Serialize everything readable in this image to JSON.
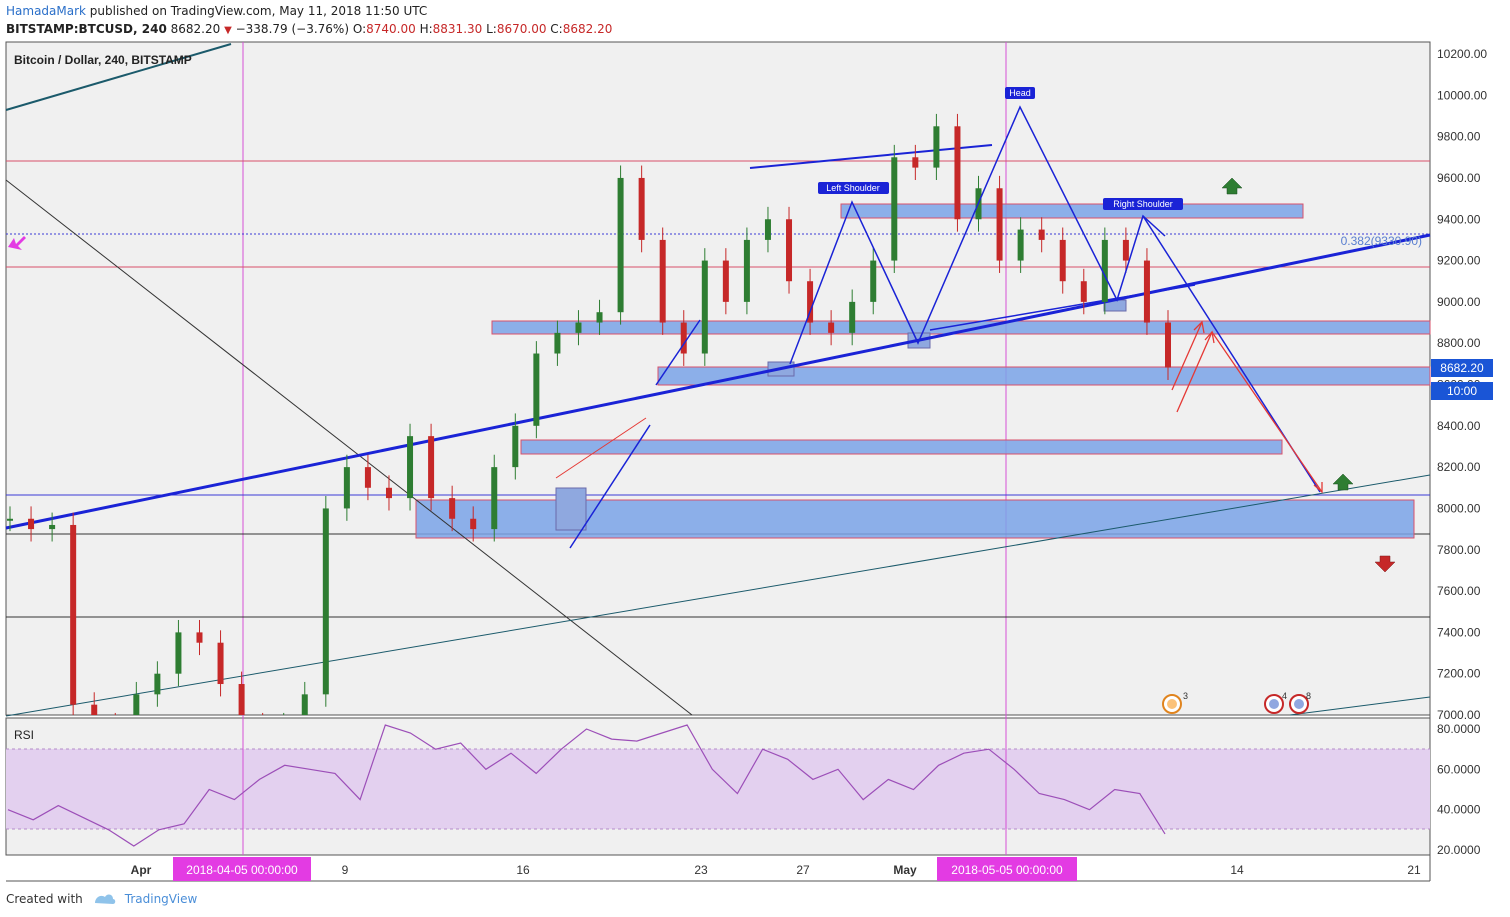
{
  "header": {
    "author": "HamadaMark",
    "published": " published on TradingView.com, May 11, 2018 11:50 UTC",
    "symbol": "BITSTAMP:BTCUSD, 240",
    "price": "8682.20",
    "change": "−338.79 (−3.76%)",
    "o_label": "O:",
    "o": "8740.00",
    "h_label": "H:",
    "h": "8831.30",
    "l_label": "L:",
    "l": "8670.00",
    "c_label": "C:",
    "c": "8682.20"
  },
  "chart": {
    "pane_title": "Bitcoin / Dollar, 240, BITSTAMP",
    "price_labels": [
      "10200.00",
      "10000.00",
      "9800.00",
      "9600.00",
      "9400.00",
      "9200.00",
      "9000.00",
      "8800.00",
      "8600.00",
      "8400.00",
      "8200.00",
      "8000.00",
      "7800.00",
      "7600.00",
      "7400.00",
      "7200.00",
      "7000.00"
    ],
    "last_price": "8682.20",
    "countdown": "10:00",
    "fib_label": "0.382(9330.90)",
    "annotations": {
      "head": "Head",
      "left_shoulder": "Left Shoulder",
      "right_shoulder": "Right Shoulder"
    },
    "events": [
      {
        "count": "3"
      },
      {
        "count": "4"
      },
      {
        "count": "8"
      }
    ],
    "colors": {
      "trend": "#1a23d6",
      "zone": "#7aa3e8",
      "zone_border": "#d9506a",
      "rsi": "#9c4fb8",
      "up": "#2e7d32",
      "down": "#c62828"
    }
  },
  "rsi": {
    "title": "RSI",
    "labels": [
      "80.0000",
      "60.0000",
      "40.0000",
      "20.0000"
    ]
  },
  "time_axis": {
    "labels": [
      "Apr",
      "9",
      "16",
      "23",
      "27",
      "May",
      "14",
      "21"
    ],
    "highlight_1": "2018-04-05 00:00:00",
    "highlight_2": "2018-05-05 00:00:00"
  },
  "footer": {
    "created": "Created with",
    "brand": "TradingView"
  },
  "chart_data": {
    "type": "candlestick",
    "title": "Bitcoin / Dollar, 240, BITSTAMP",
    "symbol": "BITSTAMP:BTCUSD",
    "interval": "240",
    "ylim": [
      7000,
      10200
    ],
    "last": 8682.2,
    "fib_level": {
      "ratio": 0.382,
      "price": 9330.9
    },
    "pattern": "Head and Shoulders",
    "rsi_ylim": [
      20,
      80
    ],
    "closes_approx": [
      7950,
      7900,
      7920,
      7050,
      6950,
      6900,
      7100,
      7200,
      7400,
      7350,
      7150,
      6950,
      6900,
      6950,
      7100,
      8000,
      8200,
      8100,
      8050,
      8350,
      8050,
      7950,
      7900,
      8200,
      8400,
      8750,
      8850,
      8900,
      8950,
      9600,
      9300,
      8900,
      8750,
      9200,
      9000,
      9300,
      9400,
      9100,
      8900,
      8850,
      9000,
      9200,
      9700,
      9650,
      9850,
      9400,
      9550,
      9200,
      9350,
      9300,
      9100,
      9000,
      9300,
      9200,
      8900,
      8682
    ],
    "rsi_approx": [
      40,
      35,
      42,
      36,
      30,
      22,
      30,
      33,
      50,
      45,
      55,
      62,
      60,
      58,
      45,
      82,
      78,
      70,
      73,
      60,
      68,
      58,
      70,
      80,
      75,
      74,
      78,
      82,
      60,
      48,
      70,
      65,
      55,
      60,
      45,
      55,
      50,
      62,
      68,
      70,
      60,
      48,
      45,
      40,
      50,
      48,
      28
    ]
  }
}
